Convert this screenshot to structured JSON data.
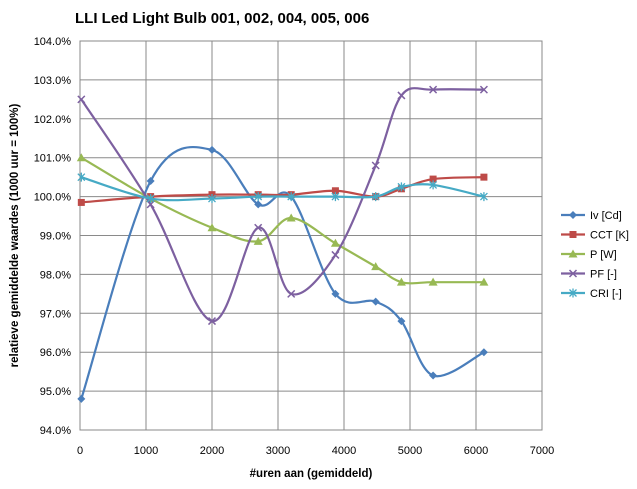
{
  "chart_data": {
    "type": "line",
    "title": "LLI Led Light Bulb 001, 002, 004, 005, 006",
    "xlabel": "#uren aan (gemiddeld)",
    "ylabel": "relatieve gemiddelde waardes (1000 uur = 100%)",
    "xlim": [
      0,
      7000
    ],
    "ylim": [
      94.0,
      104.0
    ],
    "x_ticks": [
      0,
      1000,
      2000,
      3000,
      4000,
      5000,
      6000,
      7000
    ],
    "y_ticks": [
      94.0,
      95.0,
      96.0,
      97.0,
      98.0,
      99.0,
      100.0,
      101.0,
      102.0,
      103.0,
      104.0
    ],
    "y_tick_labels": [
      "94.0%",
      "95.0%",
      "96.0%",
      "97.0%",
      "98.0%",
      "99.0%",
      "100.0%",
      "101.0%",
      "102.0%",
      "103.0%",
      "104.0%"
    ],
    "x": [
      20,
      1070,
      2000,
      2700,
      3200,
      3870,
      4480,
      4870,
      5350,
      6120
    ],
    "grid": true,
    "legend_position": "right",
    "series": [
      {
        "name": "Iv [Cd]",
        "color": "#4a7ebb",
        "marker": "diamond",
        "values": [
          94.8,
          100.4,
          101.2,
          99.8,
          100.0,
          97.5,
          97.3,
          96.8,
          95.4,
          96.0
        ]
      },
      {
        "name": "CCT [K]",
        "color": "#be4b48",
        "marker": "square",
        "values": [
          99.85,
          100.0,
          100.05,
          100.05,
          100.05,
          100.15,
          100.0,
          100.2,
          100.45,
          100.5
        ]
      },
      {
        "name": "P [W]",
        "color": "#98b954",
        "marker": "triangle",
        "values": [
          101.0,
          99.95,
          99.2,
          98.85,
          99.45,
          98.8,
          98.2,
          97.8,
          97.8,
          97.8
        ]
      },
      {
        "name": "PF [-]",
        "color": "#7d60a0",
        "marker": "x",
        "values": [
          102.5,
          99.8,
          96.8,
          99.2,
          97.5,
          98.5,
          100.8,
          102.6,
          102.75,
          102.75
        ]
      },
      {
        "name": "CRI [-]",
        "color": "#46aac5",
        "marker": "asterisk",
        "values": [
          100.5,
          99.95,
          99.95,
          100.0,
          100.0,
          100.0,
          100.0,
          100.25,
          100.3,
          100.0
        ]
      }
    ]
  }
}
